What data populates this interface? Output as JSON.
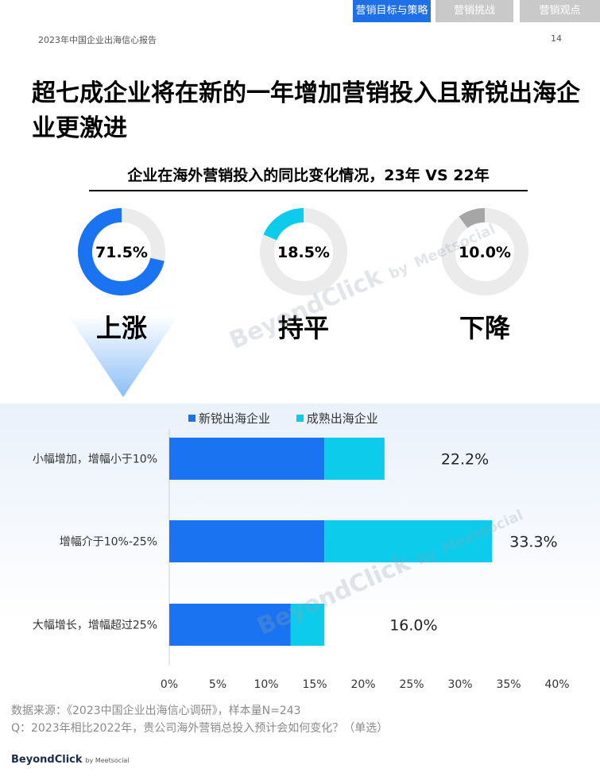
{
  "tabs": [
    "营销目标与策略",
    "营销挑战",
    "营销观点"
  ],
  "report_title": "2023年中国企业出海信心报告",
  "page_number": "14",
  "headline": "超七成企业将在新的一年增加营销投入且新锐出海企业更激进",
  "subtitle": "企业在海外营销投入的同比变化情况，23年 VS 22年",
  "watermark": {
    "main": "BeyondClick",
    "by": "by",
    "partner": "Meetsocial"
  },
  "colors": {
    "accent": "#1f6fe6",
    "new_enterprise": "#1a73f0",
    "mature_enterprise": "#0ccbeb",
    "down": "#a6a6a6",
    "track": "#ebebeb"
  },
  "chart_data": [
    {
      "type": "pie",
      "style": "donut",
      "title": "企业在海外营销投入的同比变化情况，23年 VS 22年",
      "slices": [
        {
          "label": "上涨",
          "value": 71.5,
          "value_label": "71.5%",
          "color": "#1a73f0"
        },
        {
          "label": "持平",
          "value": 18.5,
          "value_label": "18.5%",
          "color": "#0ccbeb"
        },
        {
          "label": "下降",
          "value": 10.0,
          "value_label": "10.0%",
          "color": "#a6a6a6"
        }
      ]
    },
    {
      "type": "bar",
      "orientation": "horizontal",
      "stacked": true,
      "categories": [
        "小幅增加，增幅小于10%",
        "增幅介于10%-25%",
        "大幅增长，增幅超过25%"
      ],
      "series": [
        {
          "name": "新锐出海企业",
          "values": [
            16.0,
            16.0,
            12.5
          ],
          "color": "#1a73f0"
        },
        {
          "name": "成熟出海企业",
          "values": [
            6.2,
            17.3,
            3.5
          ],
          "color": "#0ccbeb"
        }
      ],
      "total_labels": [
        "22.2%",
        "33.3%",
        "16.0%"
      ],
      "totals": [
        22.2,
        33.3,
        16.0
      ],
      "x_ticks": [
        0,
        5,
        10,
        15,
        20,
        25,
        30,
        35,
        40
      ],
      "x_tick_labels": [
        "0%",
        "5%",
        "10%",
        "15%",
        "20%",
        "25%",
        "30%",
        "35%",
        "40%"
      ],
      "xlim": [
        0,
        40
      ],
      "legend_position": "top"
    }
  ],
  "notes": {
    "source": "数据来源：《2023中国企业出海信心调研》，样本量N=243",
    "question": "Q：2023年相比2022年，贵公司海外营销总投入预计会如何变化？（单选）"
  },
  "brand": {
    "name": "BeyondClick",
    "partner": "by Meetsocial"
  }
}
